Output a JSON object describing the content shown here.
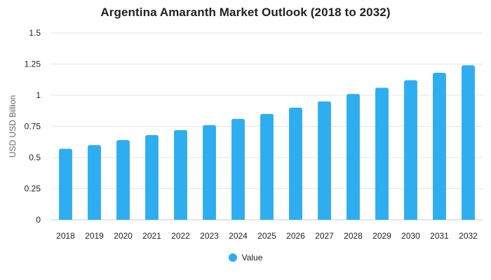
{
  "chart_data": {
    "type": "bar",
    "title": "Argentina Amaranth Market Outlook (2018 to 2032)",
    "xlabel": "",
    "ylabel": "USD USD Billion",
    "categories": [
      "2018",
      "2019",
      "2020",
      "2021",
      "2022",
      "2023",
      "2024",
      "2025",
      "2026",
      "2027",
      "2028",
      "2029",
      "2030",
      "2031",
      "2032"
    ],
    "series": [
      {
        "name": "Value",
        "color": "#2eaef0",
        "values": [
          0.57,
          0.6,
          0.64,
          0.68,
          0.72,
          0.76,
          0.81,
          0.85,
          0.9,
          0.95,
          1.01,
          1.06,
          1.12,
          1.18,
          1.24
        ]
      }
    ],
    "ylim": [
      0,
      1.5
    ],
    "yticks": [
      0,
      0.25,
      0.5,
      0.75,
      1,
      1.25,
      1.5
    ],
    "ytick_labels": [
      "0",
      "0.25",
      "0.5",
      "0.75",
      "1",
      "1.25",
      "1.5"
    ],
    "grid": true,
    "legend_position": "bottom-center"
  }
}
